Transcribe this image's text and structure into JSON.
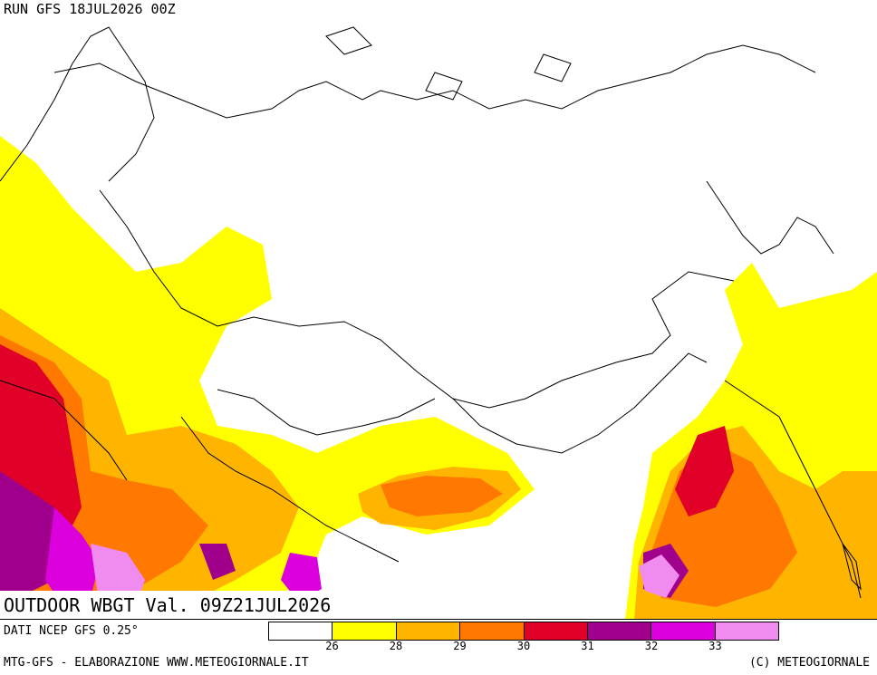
{
  "header": {
    "run_label": "RUN GFS 18JUL2026 00Z"
  },
  "map": {
    "title": "OUTDOOR WBGT Val. 09Z21JUL2026",
    "layers": [
      "country-borders",
      "coastlines",
      "wbgt-shading"
    ]
  },
  "legend": {
    "source": "DATI NCEP GFS 0.25°",
    "colors": [
      "#ffffff",
      "#ffff00",
      "#ffb400",
      "#ff7800",
      "#e00028",
      "#a0008c",
      "#dc00dc",
      "#f08cf0"
    ],
    "ticks": [
      "26",
      "28",
      "29",
      "30",
      "31",
      "32",
      "33"
    ]
  },
  "footer": {
    "left": "MTG-GFS - ELABORAZIONE WWW.METEOGIORNALE.IT",
    "right": "(C) METEOGIORNALE"
  }
}
